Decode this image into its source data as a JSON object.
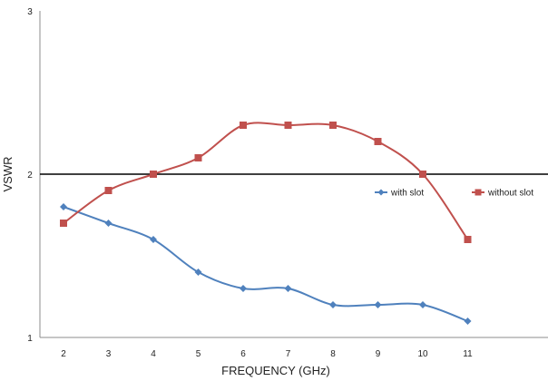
{
  "chart_data": {
    "type": "line",
    "title": "",
    "xlabel": "FREQUENCY (GHz)",
    "ylabel": "VSWR",
    "x": [
      2,
      3,
      4,
      5,
      6,
      7,
      8,
      9,
      10,
      11
    ],
    "x_tick_labels": [
      "2",
      "3",
      "4",
      "5",
      "6",
      "7",
      "8",
      "9",
      "10",
      "11"
    ],
    "ylim": [
      1,
      3
    ],
    "y_tick_labels": [
      "1",
      "2",
      "3"
    ],
    "grid": false,
    "reference_line": {
      "y": 2,
      "color": "#000000"
    },
    "legend_position": "right",
    "series": [
      {
        "name": "with slot",
        "marker": "diamond",
        "color": "#4f81bd",
        "values": [
          1.8,
          1.7,
          1.6,
          1.4,
          1.3,
          1.3,
          1.2,
          1.2,
          1.2,
          1.1
        ]
      },
      {
        "name": "without slot",
        "marker": "square",
        "color": "#c0504d",
        "values": [
          1.7,
          1.9,
          2.0,
          2.1,
          2.3,
          2.3,
          2.3,
          2.2,
          2.0,
          1.6
        ]
      }
    ]
  }
}
